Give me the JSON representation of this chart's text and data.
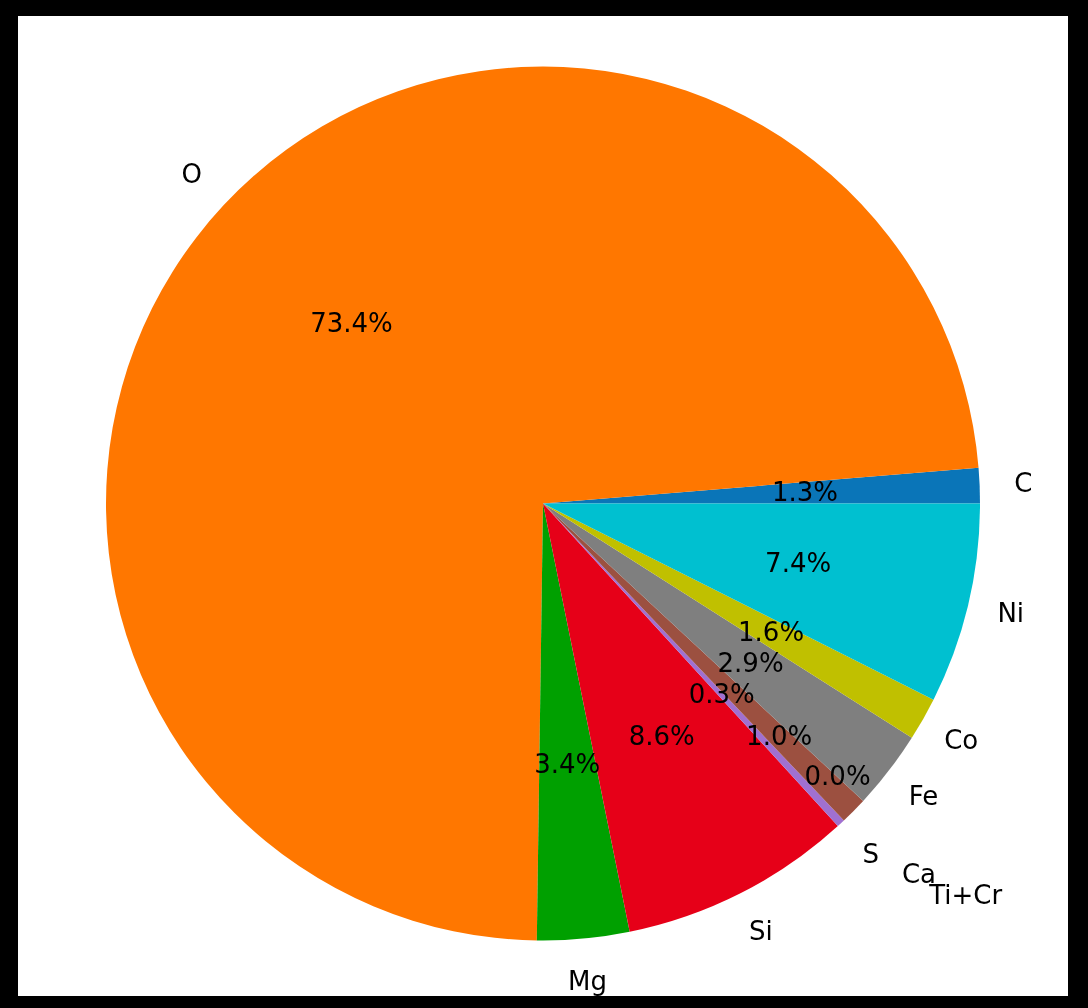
{
  "chart_data": {
    "type": "pie",
    "categories": [
      "C",
      "O",
      "Mg",
      "Si",
      "S",
      "Ca",
      "Ti+Cr",
      "Fe",
      "Co",
      "Ni"
    ],
    "values": [
      1.3,
      73.4,
      3.4,
      8.6,
      0.3,
      1.0,
      0.0,
      2.9,
      1.6,
      7.4
    ],
    "colors": [
      "#0a75b8",
      "#ff7700",
      "#00a000",
      "#e60018",
      "#a070d0",
      "#9c5040",
      "#e377c2",
      "#7f7f7f",
      "#c0c000",
      "#00c0d0"
    ],
    "data_labels": true,
    "value_labels": [
      "1.3%",
      "73.4%",
      "3.4%",
      "8.6%",
      "0.3%",
      "1.0%",
      "0.0%",
      "2.9%",
      "1.6%",
      "7.4%"
    ],
    "legend": false
  }
}
